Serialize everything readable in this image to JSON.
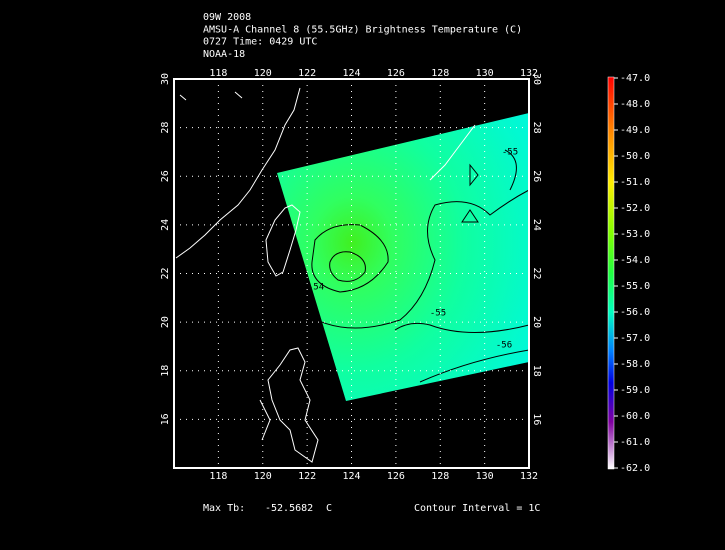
{
  "header": {
    "lines": [
      "09W 2008",
      "AMSU-A Channel 8 (55.5GHz) Brightness Temperature (C)",
      "0727 Time: 0429 UTC",
      "NOAA-18"
    ]
  },
  "map": {
    "lon_ticks": [
      118,
      120,
      122,
      124,
      126,
      128,
      130,
      132
    ],
    "lat_ticks": [
      16,
      18,
      20,
      22,
      24,
      26,
      28,
      30
    ],
    "contour_labels": [
      "-55",
      "-54",
      "-55",
      "-56"
    ]
  },
  "colorbar": {
    "labels": [
      "-47.0",
      "-48.0",
      "-49.0",
      "-50.0",
      "-51.0",
      "-52.0",
      "-53.0",
      "-54.0",
      "-55.0",
      "-56.0",
      "-57.0",
      "-58.0",
      "-59.0",
      "-60.0",
      "-61.0",
      "-62.0"
    ]
  },
  "footer": {
    "max_label": "Max Tb:",
    "max_value": "-52.5682",
    "unit": "C",
    "contour_interval": "Contour Interval = 1C"
  }
}
